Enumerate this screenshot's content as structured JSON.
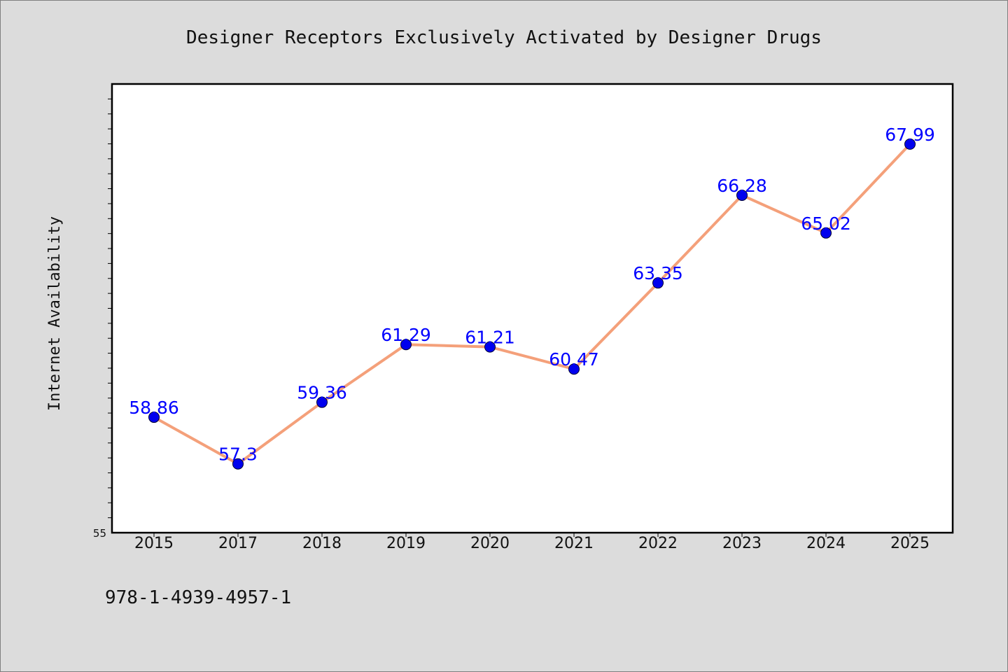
{
  "chart_data": {
    "type": "line",
    "title": "Designer Receptors Exclusively Activated by Designer Drugs",
    "xlabel": "",
    "ylabel": "Internet Availability",
    "categories": [
      "2015",
      "2017",
      "2018",
      "2019",
      "2020",
      "2021",
      "2022",
      "2023",
      "2024",
      "2025"
    ],
    "series": [
      {
        "values": [
          58.86,
          57.3,
          59.36,
          61.29,
          61.21,
          60.47,
          63.35,
          66.28,
          65.02,
          67.99
        ],
        "labels": [
          "58.86",
          "57.3",
          "59.36",
          "61.29",
          "61.21",
          "60.47",
          "63.35",
          "66.28",
          "65.02",
          "67.99"
        ],
        "line_color": "#f4a07a",
        "marker_color": "#0000ee",
        "label_color": "#0000ff"
      }
    ],
    "ylim": [
      55,
      70
    ],
    "ytick_labels": [
      "55"
    ],
    "grid": false,
    "legend": "none",
    "background_color": "#dcdcdc",
    "plot_background": "#ffffff"
  },
  "footer": {
    "isbn": "978-1-4939-4957-1"
  }
}
